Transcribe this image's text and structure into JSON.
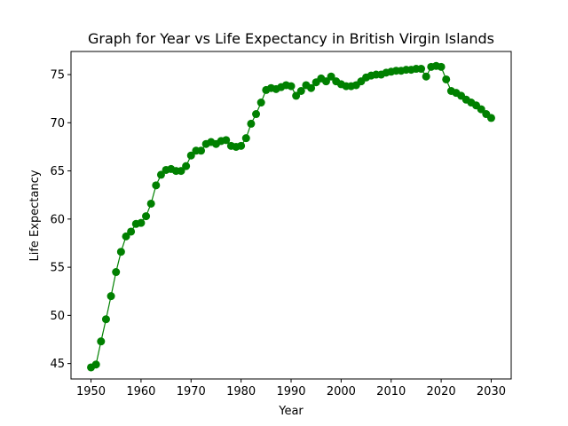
{
  "chart_data": {
    "type": "line",
    "title": "Graph for Year vs Life Expectancy in British Virgin Islands",
    "xlabel": "Year",
    "ylabel": "Life Expectancy",
    "xlim": [
      1946,
      2034
    ],
    "ylim": [
      43.4,
      77.4
    ],
    "xticks": [
      1950,
      1960,
      1970,
      1980,
      1990,
      2000,
      2010,
      2020,
      2030
    ],
    "yticks": [
      45,
      50,
      55,
      60,
      65,
      70,
      75
    ],
    "grid": false,
    "legend": "none",
    "color": "#008000",
    "marker": "circle",
    "series": [
      {
        "x": [
          1950,
          1951,
          1952,
          1953,
          1954,
          1955,
          1956,
          1957,
          1958,
          1959,
          1960,
          1961,
          1962,
          1963,
          1964,
          1965,
          1966,
          1967,
          1968,
          1969,
          1970,
          1971,
          1972,
          1973,
          1974,
          1975,
          1976,
          1977,
          1978,
          1979,
          1980,
          1981,
          1982,
          1983,
          1984,
          1985,
          1986,
          1987,
          1988,
          1989,
          1990,
          1991,
          1992,
          1993,
          1994,
          1995,
          1996,
          1997,
          1998,
          1999,
          2000,
          2001,
          2002,
          2003,
          2004,
          2005,
          2006,
          2007,
          2008,
          2009,
          2010,
          2011,
          2012,
          2013,
          2014,
          2015,
          2016,
          2017,
          2018,
          2019,
          2020,
          2021,
          2022,
          2023,
          2024,
          2025,
          2026,
          2027,
          2028,
          2029,
          2030
        ],
        "y": [
          44.6,
          44.9,
          47.3,
          49.6,
          52.0,
          54.5,
          56.6,
          58.2,
          58.7,
          59.5,
          59.6,
          60.3,
          61.6,
          63.5,
          64.6,
          65.1,
          65.2,
          65.0,
          65.0,
          65.5,
          66.6,
          67.1,
          67.1,
          67.8,
          68.0,
          67.8,
          68.1,
          68.2,
          67.6,
          67.5,
          67.6,
          68.4,
          69.9,
          70.9,
          72.1,
          73.4,
          73.6,
          73.5,
          73.7,
          73.9,
          73.8,
          72.8,
          73.3,
          73.9,
          73.6,
          74.2,
          74.6,
          74.3,
          74.8,
          74.3,
          74.0,
          73.8,
          73.8,
          73.9,
          74.3,
          74.7,
          74.9,
          75.0,
          75.0,
          75.2,
          75.3,
          75.4,
          75.4,
          75.5,
          75.5,
          75.6,
          75.6,
          74.8,
          75.8,
          75.9,
          75.8,
          74.5,
          73.3,
          73.1,
          72.8,
          72.4,
          72.1,
          71.8,
          71.4,
          70.9,
          70.5
        ]
      }
    ]
  }
}
